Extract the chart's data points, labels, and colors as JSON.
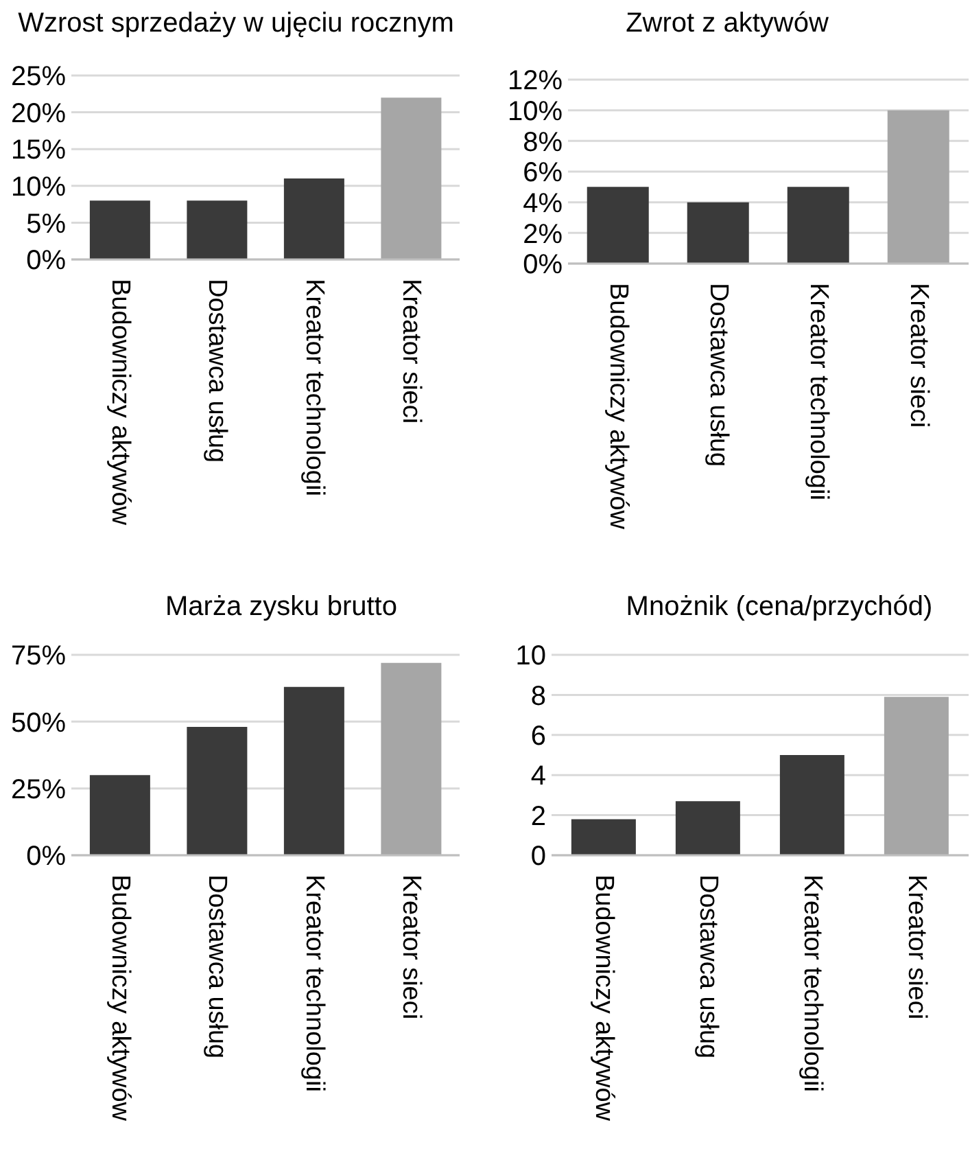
{
  "chart_data": [
    {
      "type": "bar",
      "title": "Wzrost sprzedaży w ujęciu rocznym",
      "categories": [
        "Budowniczy aktywów",
        "Dostawca usług",
        "Kreator technologii",
        "Kreator sieci"
      ],
      "values": [
        8,
        8,
        11,
        22
      ],
      "colors": [
        "#3a3a3a",
        "#3a3a3a",
        "#3a3a3a",
        "#a6a6a6"
      ],
      "ylim": [
        0,
        25
      ],
      "yticks": [
        {
          "value": 0,
          "label": "0%"
        },
        {
          "value": 5,
          "label": "5%"
        },
        {
          "value": 10,
          "label": "10%"
        },
        {
          "value": 15,
          "label": "15%"
        },
        {
          "value": 20,
          "label": "20%"
        },
        {
          "value": 25,
          "label": "25%"
        }
      ],
      "grid": "y"
    },
    {
      "type": "bar",
      "title": "Zwrot z aktywów",
      "categories": [
        "Budowniczy aktywów",
        "Dostawca usług",
        "Kreator technologii",
        "Kreator sieci"
      ],
      "values": [
        5,
        4,
        5,
        10
      ],
      "colors": [
        "#3a3a3a",
        "#3a3a3a",
        "#3a3a3a",
        "#a6a6a6"
      ],
      "ylim": [
        0,
        12
      ],
      "yticks": [
        {
          "value": 0,
          "label": "0%"
        },
        {
          "value": 2,
          "label": "2%"
        },
        {
          "value": 4,
          "label": "4%"
        },
        {
          "value": 6,
          "label": "6%"
        },
        {
          "value": 8,
          "label": "8%"
        },
        {
          "value": 10,
          "label": "10%"
        },
        {
          "value": 12,
          "label": "12%"
        }
      ],
      "grid": "y"
    },
    {
      "type": "bar",
      "title": "Marża zysku brutto",
      "categories": [
        "Budowniczy aktywów",
        "Dostawca usług",
        "Kreator technologii",
        "Kreator sieci"
      ],
      "values": [
        30,
        48,
        63,
        72
      ],
      "colors": [
        "#3a3a3a",
        "#3a3a3a",
        "#3a3a3a",
        "#a6a6a6"
      ],
      "ylim": [
        0,
        75
      ],
      "yticks": [
        {
          "value": 0,
          "label": "0%"
        },
        {
          "value": 25,
          "label": "25%"
        },
        {
          "value": 50,
          "label": "50%"
        },
        {
          "value": 75,
          "label": "75%"
        }
      ],
      "grid": "y"
    },
    {
      "type": "bar",
      "title": "Mnożnik (cena/przychód)",
      "categories": [
        "Budowniczy aktywów",
        "Dostawca usług",
        "Kreator technologii",
        "Kreator sieci"
      ],
      "values": [
        1.8,
        2.7,
        5,
        7.9
      ],
      "colors": [
        "#3a3a3a",
        "#3a3a3a",
        "#3a3a3a",
        "#a6a6a6"
      ],
      "ylim": [
        0,
        10
      ],
      "yticks": [
        0,
        2,
        4,
        6,
        8,
        10
      ],
      "grid": "y"
    }
  ]
}
